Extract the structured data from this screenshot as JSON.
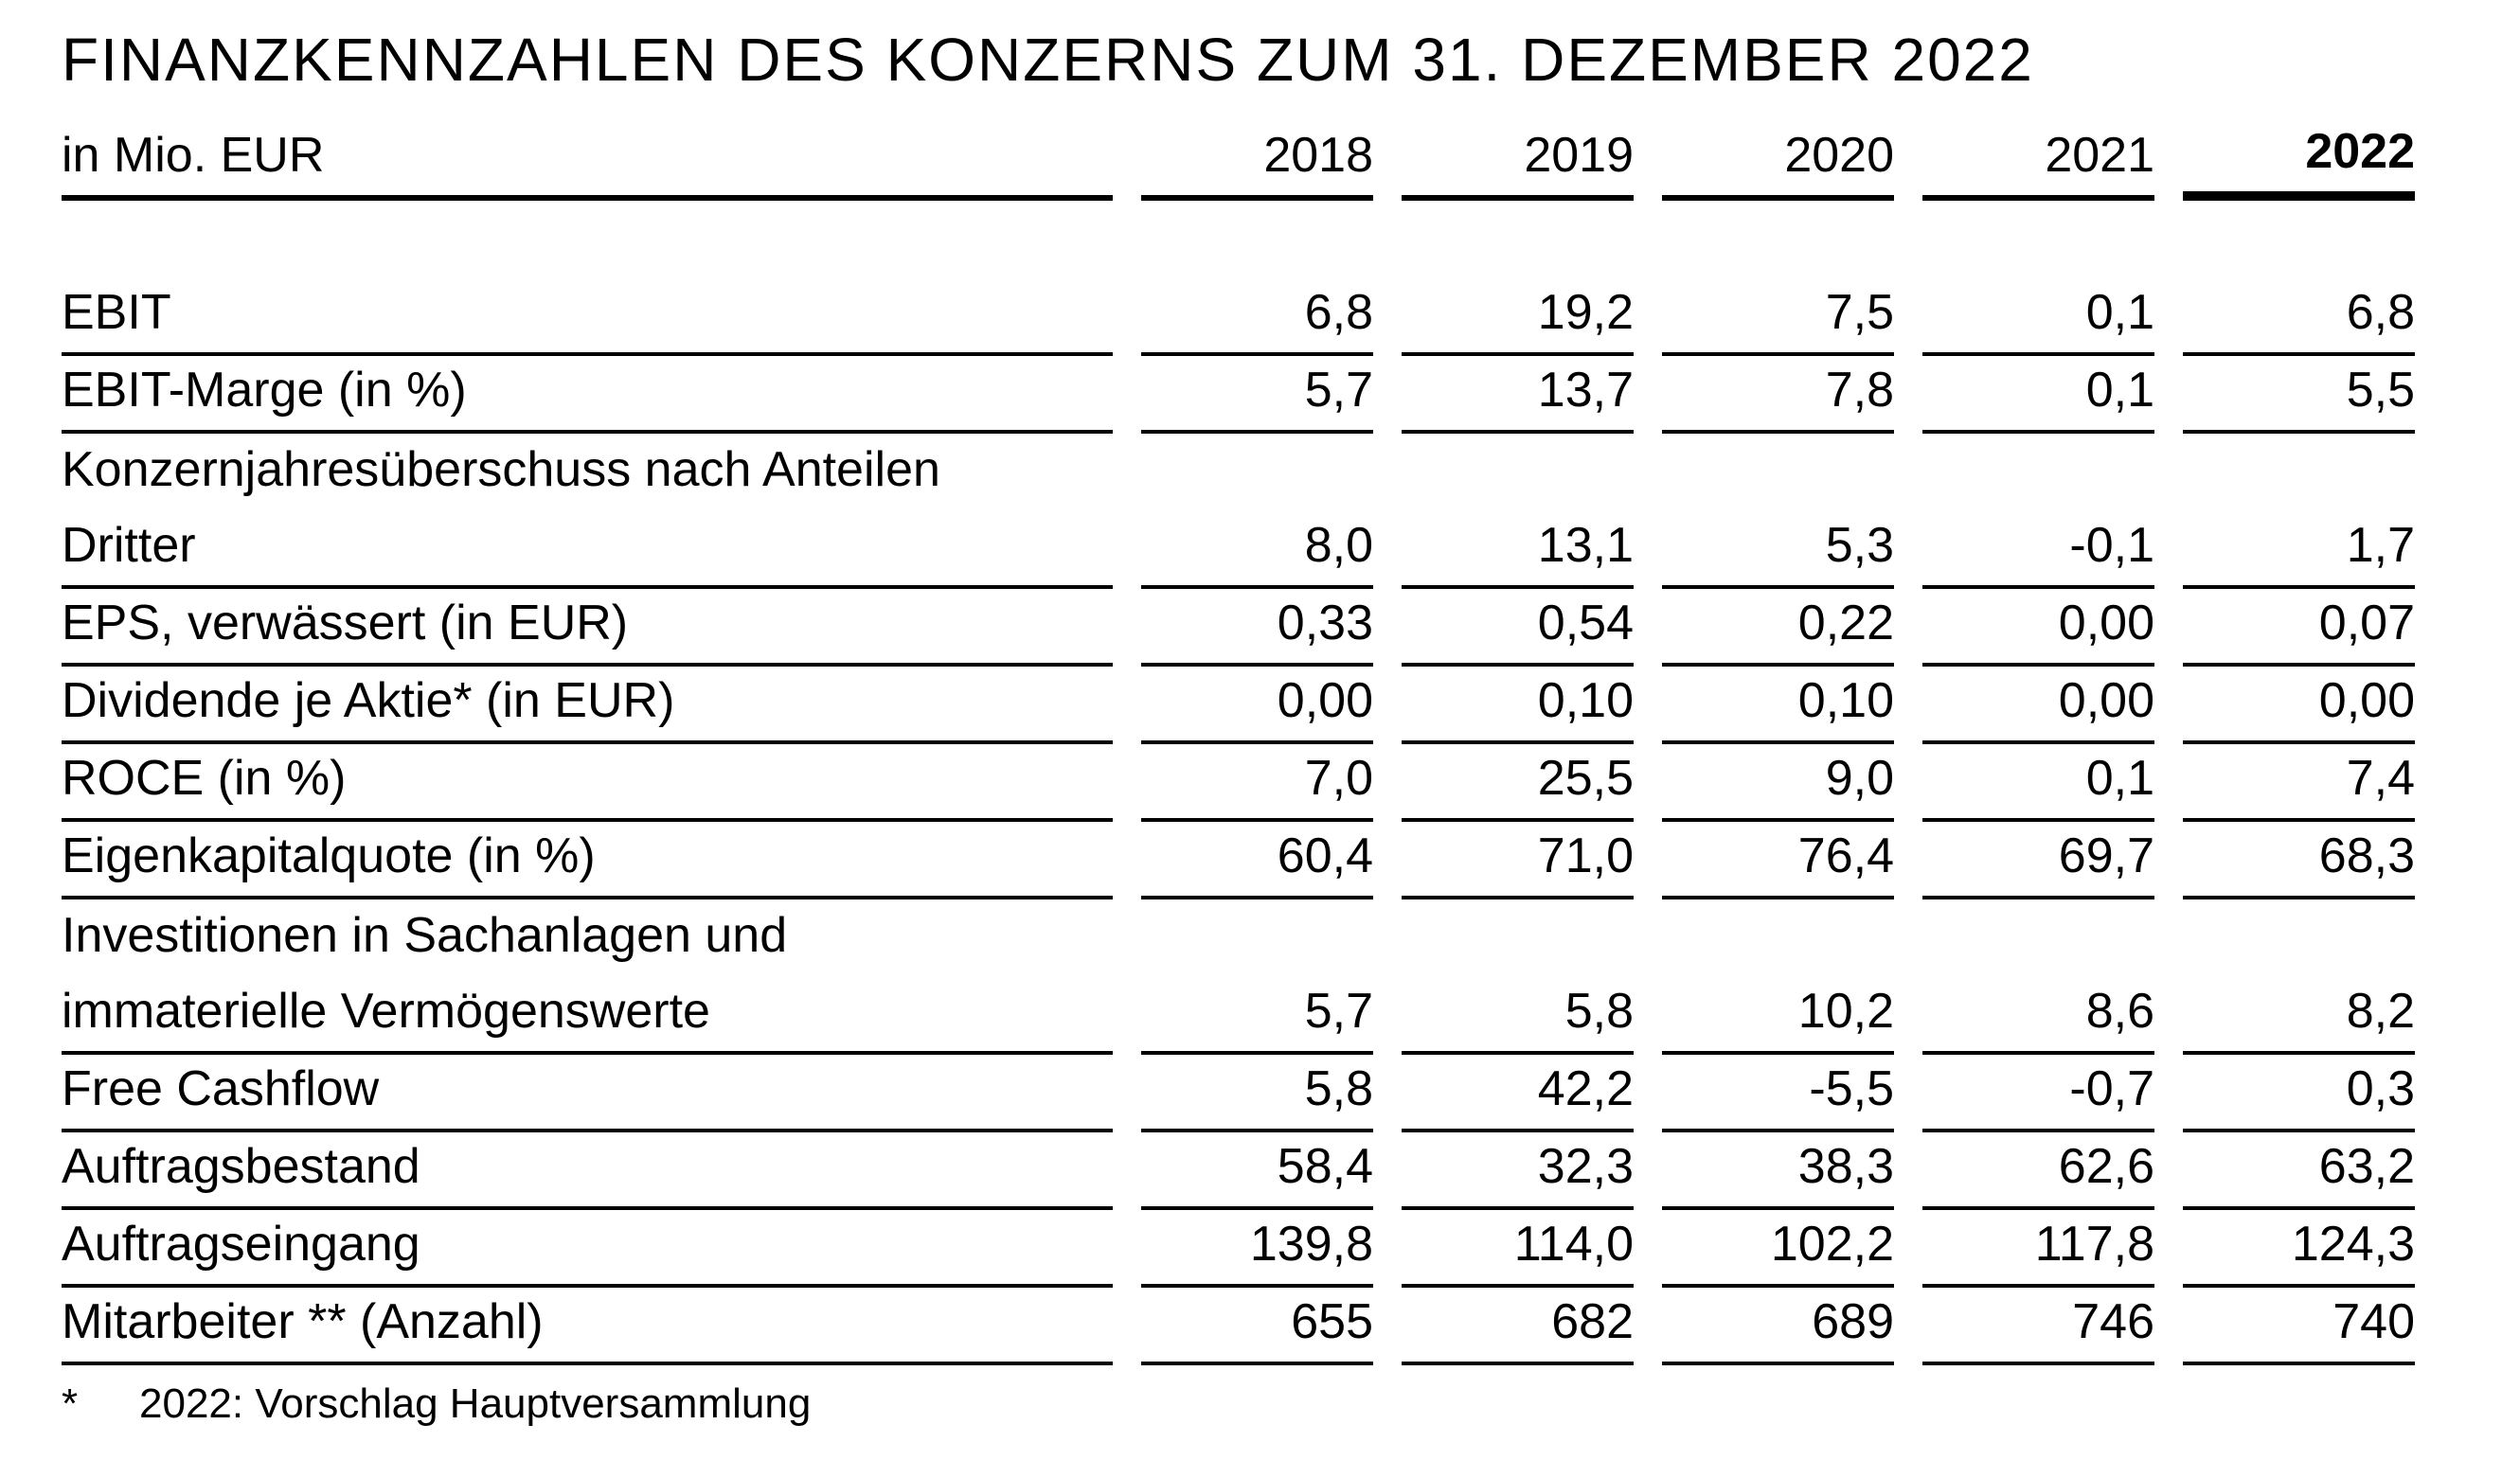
{
  "title": "FINANZKENNZAHLEN DES KONZERNS ZUM 31. DEZEMBER 2022",
  "unit_label": "in Mio. EUR",
  "years": [
    "2018",
    "2019",
    "2020",
    "2021",
    "2022"
  ],
  "rows": [
    {
      "label": "EBIT",
      "values": [
        "6,8",
        "19,2",
        "7,5",
        "0,1",
        "6,8"
      ]
    },
    {
      "label": "EBIT-Marge (in %)",
      "values": [
        "5,7",
        "13,7",
        "7,8",
        "0,1",
        "5,5"
      ]
    },
    {
      "label": "Konzernjahresüberschuss nach Anteilen",
      "label2": "Dritter",
      "values": [
        "8,0",
        "13,1",
        "5,3",
        "-0,1",
        "1,7"
      ]
    },
    {
      "label": "EPS, verwässert (in EUR)",
      "values": [
        "0,33",
        "0,54",
        "0,22",
        "0,00",
        "0,07"
      ]
    },
    {
      "label": "Dividende je Aktie* (in EUR)",
      "values": [
        "0,00",
        "0,10",
        "0,10",
        "0,00",
        "0,00"
      ]
    },
    {
      "label": "ROCE (in %)",
      "values": [
        "7,0",
        "25,5",
        "9,0",
        "0,1",
        "7,4"
      ]
    },
    {
      "label": "Eigenkapitalquote (in %)",
      "values": [
        "60,4",
        "71,0",
        "76,4",
        "69,7",
        "68,3"
      ]
    },
    {
      "label": "Investitionen in Sachanlagen und",
      "label2": "immaterielle Vermögenswerte",
      "values": [
        "5,7",
        "5,8",
        "10,2",
        "8,6",
        "8,2"
      ]
    },
    {
      "label": "Free Cashflow",
      "values": [
        "5,8",
        "42,2",
        "-5,5",
        "-0,7",
        "0,3"
      ]
    },
    {
      "label": "Auftragsbestand",
      "values": [
        "58,4",
        "32,3",
        "38,3",
        "62,6",
        "63,2"
      ]
    },
    {
      "label": "Auftragseingang",
      "values": [
        "139,8",
        "114,0",
        "102,2",
        "117,8",
        "124,3"
      ]
    },
    {
      "label": "Mitarbeiter ** (Anzahl)",
      "values": [
        "655",
        "682",
        "689",
        "746",
        "740"
      ]
    }
  ],
  "footnote": {
    "marker": "*",
    "text": "2022: Vorschlag Hauptversammlung"
  }
}
